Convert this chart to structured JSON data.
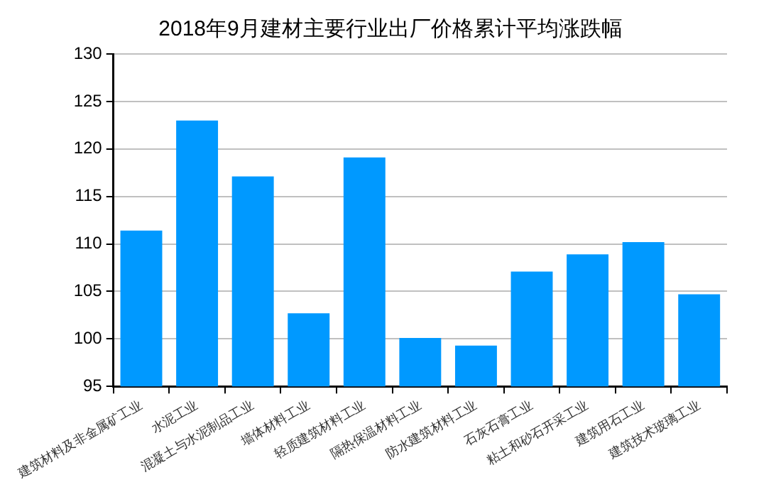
{
  "chart_data": {
    "type": "bar",
    "title": "2018年9月建材主要行业出厂价格累计平均涨跌幅",
    "categories": [
      "建筑材料及非金属矿工业",
      "水泥工业",
      "混凝土与水泥制品工业",
      "墙体材料工业",
      "轻质建筑材料工业",
      "隔热保温材料工业",
      "防水建筑材料工业",
      "石灰石膏工业",
      "粘土和砂石开采工业",
      "建筑用石工业",
      "建筑技术玻璃工业"
    ],
    "values": [
      111.4,
      123.0,
      117.1,
      102.7,
      119.1,
      100.1,
      99.3,
      107.1,
      108.9,
      110.2,
      104.7
    ],
    "color": "#0099ff",
    "ylim": [
      95,
      130
    ],
    "yticks": [
      95,
      100,
      105,
      110,
      115,
      120,
      125,
      130
    ],
    "grid": "y"
  }
}
